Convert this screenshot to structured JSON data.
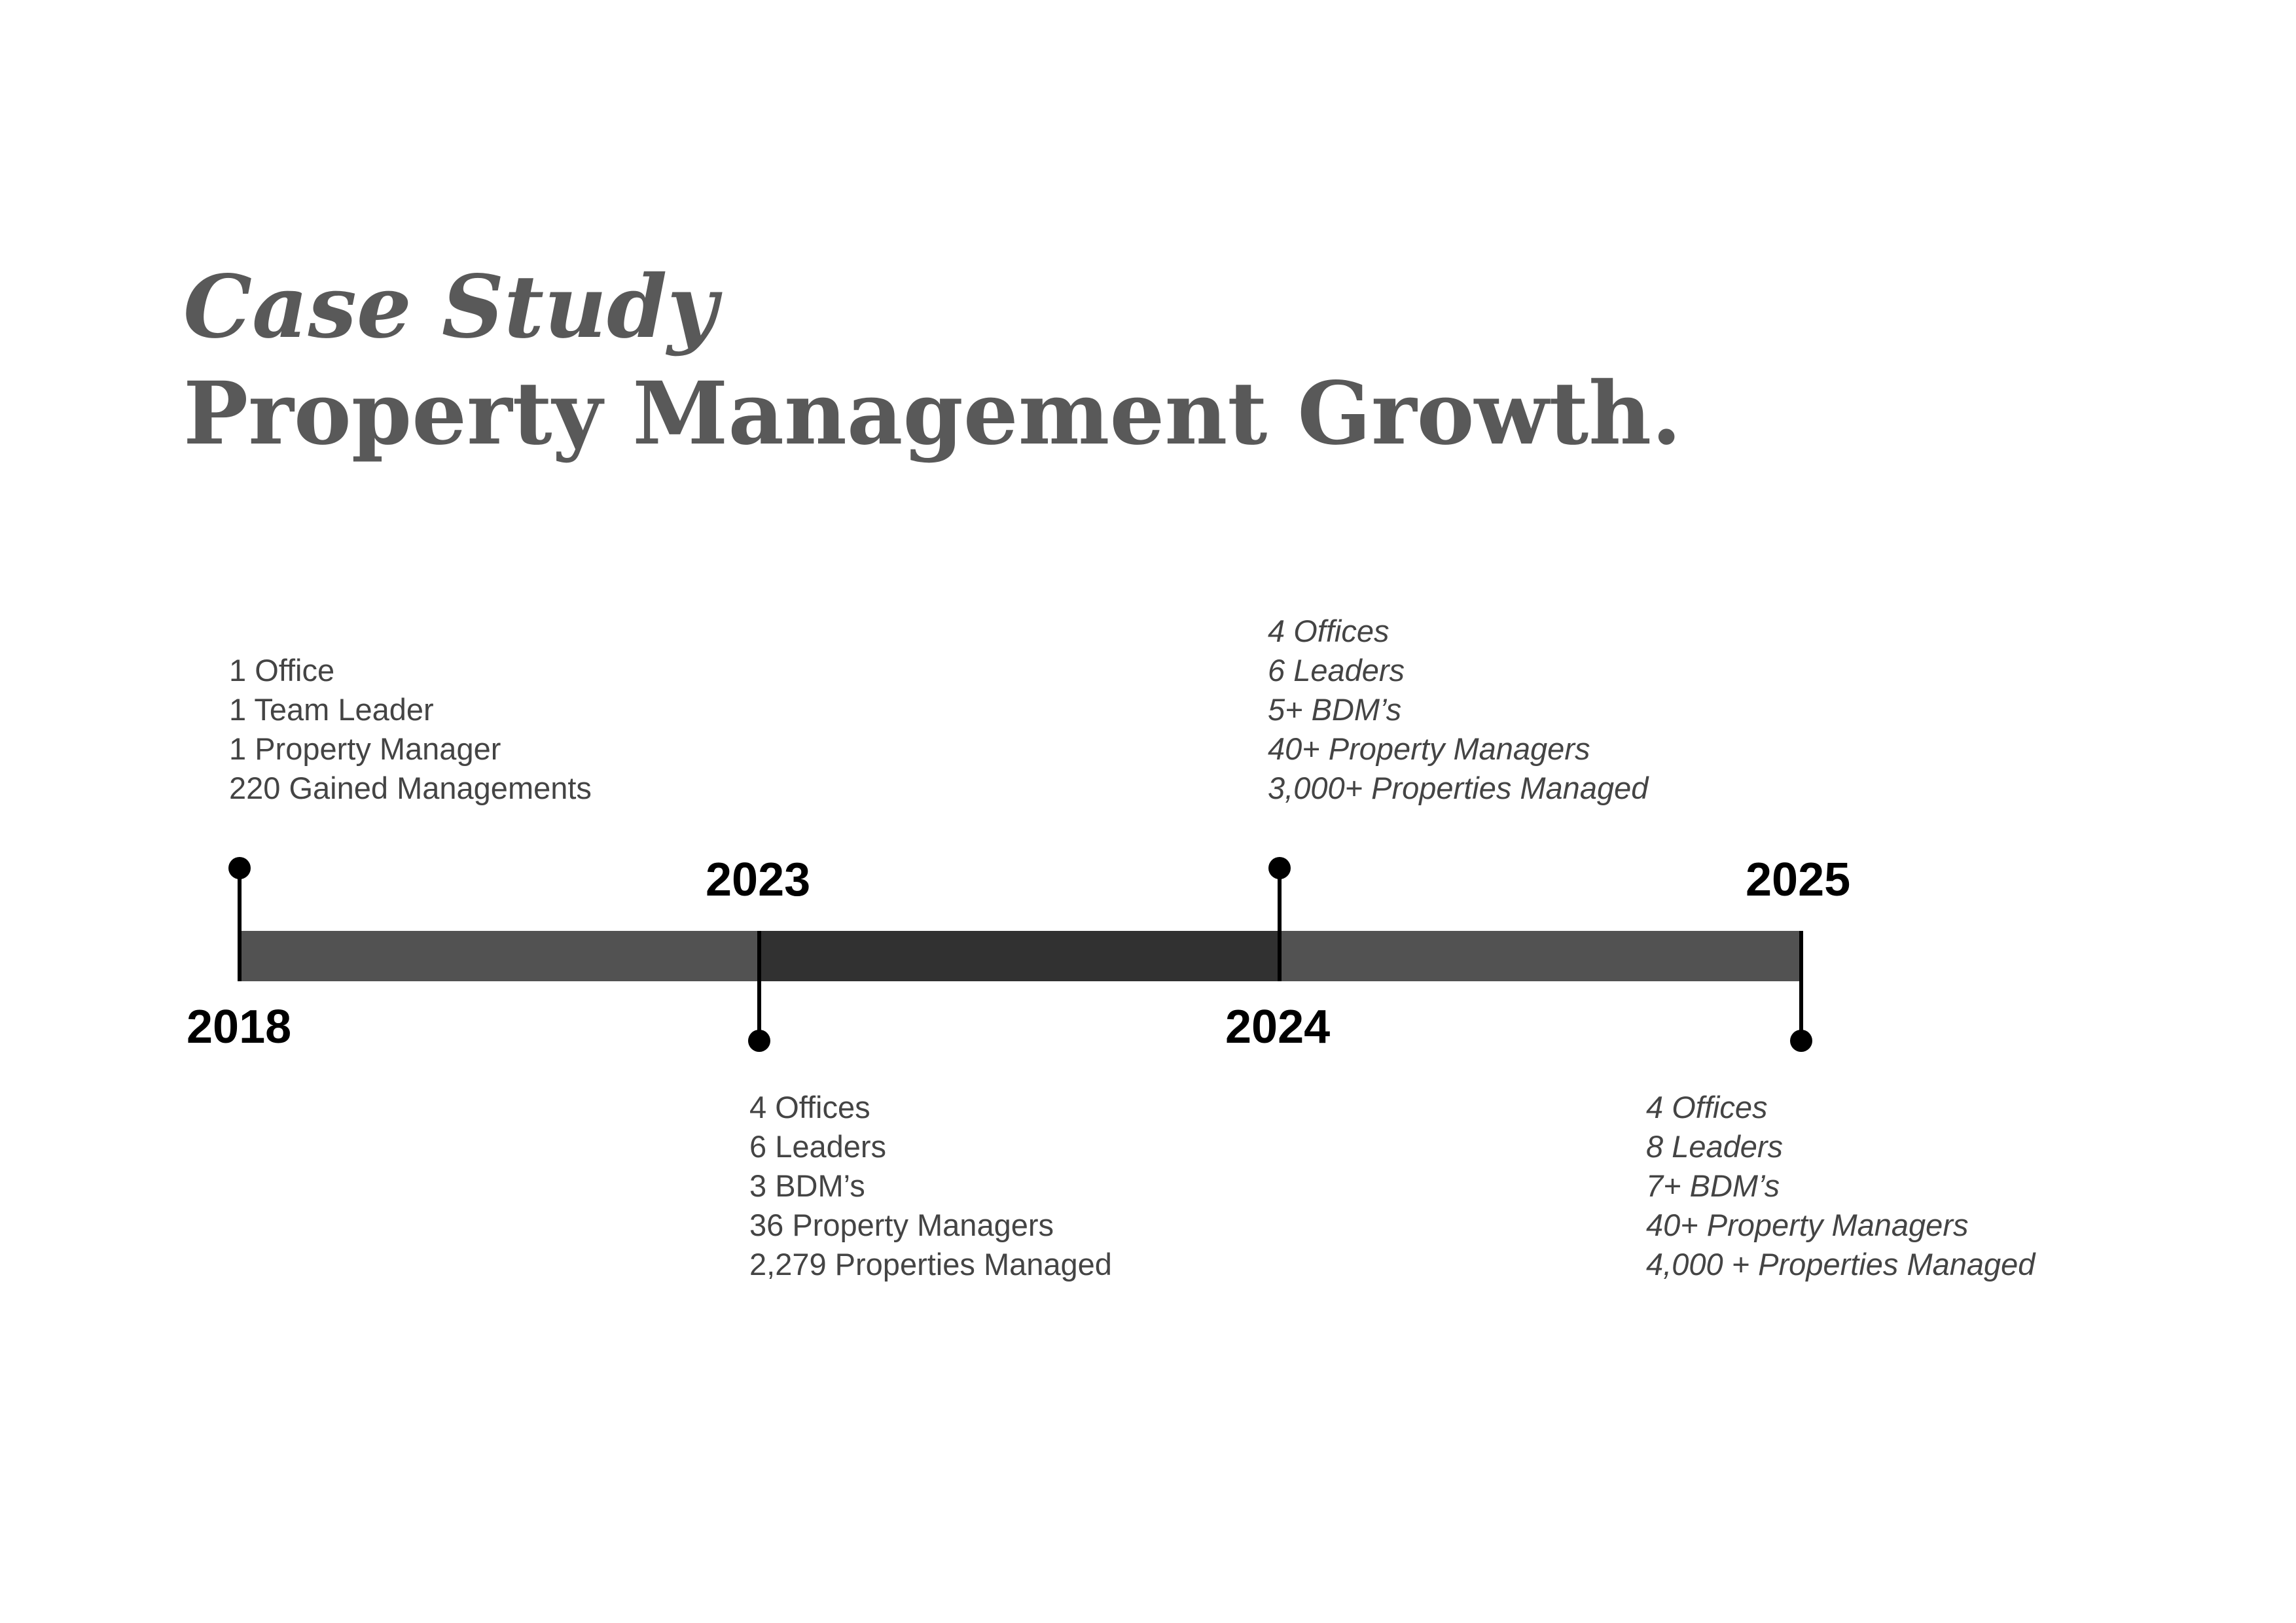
{
  "title": {
    "line1": "Case Study",
    "line2": "Property Management Growth."
  },
  "colors": {
    "title": "#595959",
    "bar": "#525252",
    "bar_highlight": "#313131",
    "marker": "#000000",
    "text": "#444444"
  },
  "timeline": [
    {
      "year": "2018",
      "stats": [
        "1 Office",
        "1 Team Leader",
        "1 Property Manager",
        "220 Gained Managements"
      ]
    },
    {
      "year": "2023",
      "stats": [
        "4 Offices",
        "6 Leaders",
        "3 BDM’s",
        "36 Property Managers",
        "2,279 Properties Managed"
      ]
    },
    {
      "year": "2024",
      "stats": [
        "4 Offices",
        "6 Leaders",
        "5+ BDM’s",
        "40+ Property Managers",
        "3,000+ Properties Managed"
      ]
    },
    {
      "year": "2025",
      "stats": [
        "4 Offices",
        "8 Leaders",
        "7+ BDM’s",
        "40+ Property Managers",
        "4,000 + Properties Managed"
      ]
    }
  ]
}
